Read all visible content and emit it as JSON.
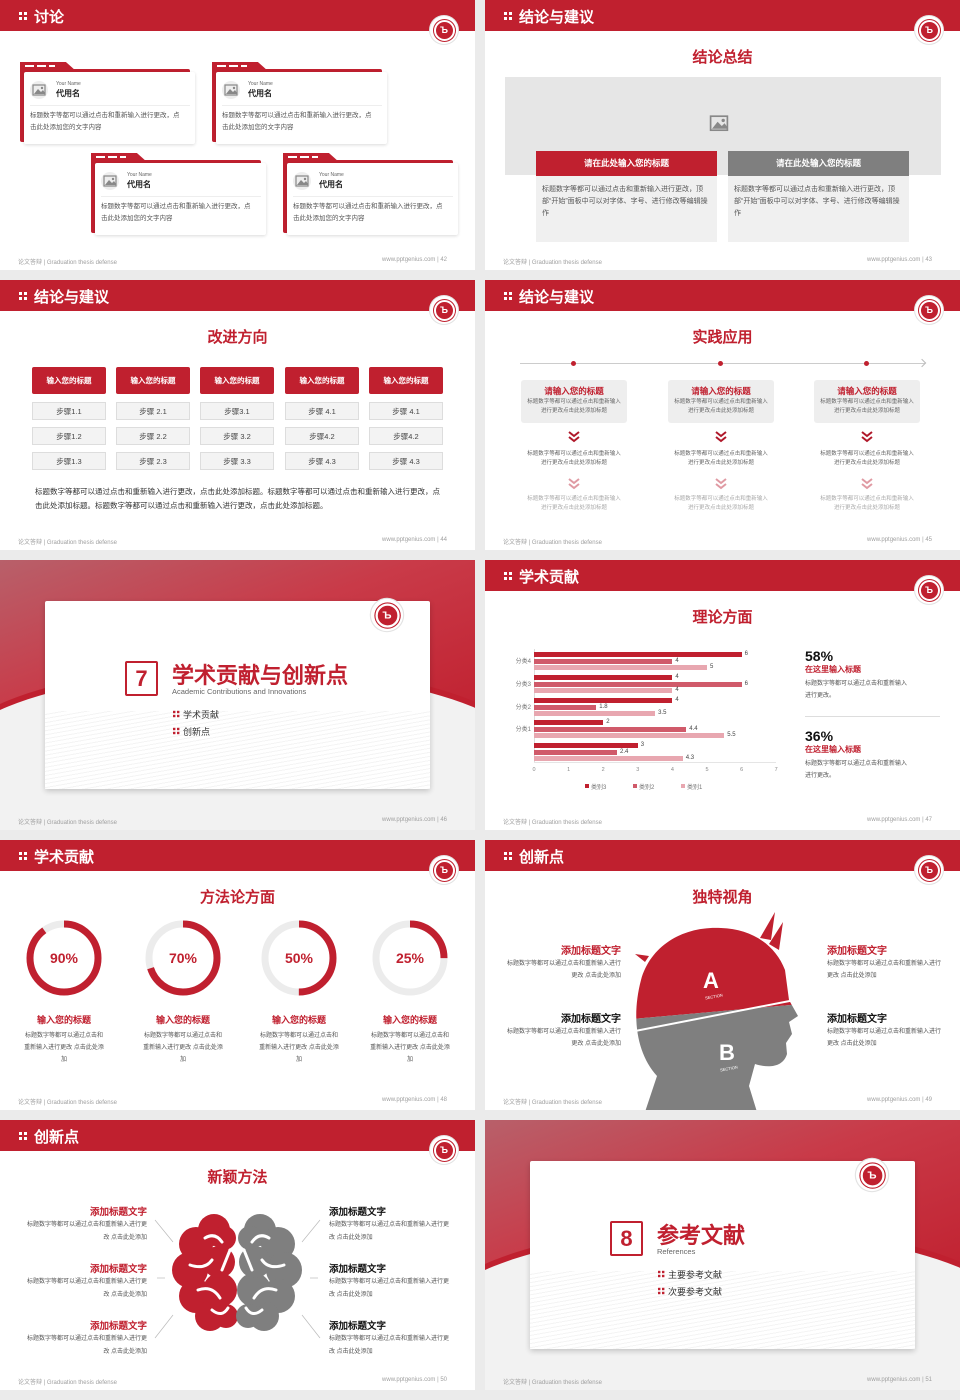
{
  "footer": {
    "left": "论文答辩 | Graduation thesis defense",
    "url": "www.pptgenius.com"
  },
  "colors": {
    "accent": "#c0202f",
    "gray": "#7f7f7f",
    "light_gray": "#f0f0f0"
  },
  "slides": [
    {
      "page": "42",
      "title": "讨论",
      "cards": [
        {
          "en": "Your Name",
          "name": "代用名",
          "text": "标题数字等都可以通过点击和重新输入进行更改，点击此处添加您的文字内容"
        },
        {
          "en": "Your Name",
          "name": "代用名",
          "text": "标题数字等都可以通过点击和重新输入进行更改，点击此处添加您的文字内容"
        },
        {
          "en": "Your Name",
          "name": "代用名",
          "text": "标题数字等都可以通过点击和重新输入进行更改，点击此处添加您的文字内容"
        },
        {
          "en": "Your Name",
          "name": "代用名",
          "text": "标题数字等都可以通过点击和重新输入进行更改，点击此处添加您的文字内容"
        }
      ]
    },
    {
      "page": "43",
      "title": "结论与建议",
      "subtitle": "结论总结",
      "boxes": [
        {
          "title": "请在此处输入您的标题",
          "text": "标题数字等都可以通过点击和重新输入进行更改，顶部“开始”面板中可以对字体、字号、进行修改等编辑操作"
        },
        {
          "title": "请在此处输入您的标题",
          "text": "标题数字等都可以通过点击和重新输入进行更改，顶部“开始”面板中可以对字体、字号、进行修改等编辑操作"
        }
      ]
    },
    {
      "page": "44",
      "title": "结论与建议",
      "subtitle": "改进方向",
      "columns": [
        {
          "head": "输入您的标题",
          "steps": [
            "步骤1.1",
            "步骤1.2",
            "步骤1.3"
          ]
        },
        {
          "head": "输入您的标题",
          "steps": [
            "步骤 2.1",
            "步骤 2.2",
            "步骤 2.3"
          ]
        },
        {
          "head": "输入您的标题",
          "steps": [
            "步骤3.1",
            "步骤 3.2",
            "步骤 3.3"
          ]
        },
        {
          "head": "输入您的标题",
          "steps": [
            "步骤 4.1",
            "步骤4.2",
            "步骤 4.3"
          ]
        },
        {
          "head": "输入您的标题",
          "steps": [
            "步骤 4.1",
            "步骤4.2",
            "步骤 4.3"
          ]
        }
      ],
      "text": "标题数字等都可以通过点击和重新输入进行更改，点击此处添加标题。标题数字等都可以通过点击和重新输入进行更改，点击此处添加标题。标题数字等都可以通过点击和重新输入进行更改，点击此处添加标题。"
    },
    {
      "page": "45",
      "title": "结论与建议",
      "subtitle": "实践应用",
      "items": [
        {
          "title": "请输入您的标题",
          "text": "标题数字等都可以通过点击和重新输入进行更改点击此处添加标题",
          "text2": "标题数字等都可以通过点击和重新输入进行更改点击此处添加标题",
          "text3": "标题数字等都可以通过点击和重新输入进行更改点击此处添加标题"
        },
        {
          "title": "请输入您的标题",
          "text": "标题数字等都可以通过点击和重新输入进行更改点击此处添加标题",
          "text2": "标题数字等都可以通过点击和重新输入进行更改点击此处添加标题",
          "text3": "标题数字等都可以通过点击和重新输入进行更改点击此处添加标题"
        },
        {
          "title": "请输入您的标题",
          "text": "标题数字等都可以通过点击和重新输入进行更改点击此处添加标题",
          "text2": "标题数字等都可以通过点击和重新输入进行更改点击此处添加标题",
          "text3": "标题数字等都可以通过点击和重新输入进行更改点击此处添加标题"
        }
      ]
    },
    {
      "page": "46",
      "section_no": "7",
      "title": "学术贡献与创新点",
      "en": "Academic Contributions and Innovations",
      "items": [
        "学术贡献",
        "创新点"
      ]
    },
    {
      "page": "47",
      "title": "学术贡献",
      "subtitle": "理论方面",
      "stats": [
        {
          "value": "58%",
          "title": "在这里输入标题",
          "text": "标题数字等都可以通过点击和重新输入进行更改。"
        },
        {
          "value": "36%",
          "title": "在这里输入标题",
          "text": "标题数字等都可以通过点击和重新输入进行更改。"
        }
      ]
    },
    {
      "page": "48",
      "title": "学术贡献",
      "subtitle": "方法论方面",
      "rings": [
        {
          "value": 90,
          "label": "90%",
          "title": "输入您的标题",
          "text": "标题数字等都可以通过点击和重新输入进行更改 点击此处添加"
        },
        {
          "value": 70,
          "label": "70%",
          "title": "输入您的标题",
          "text": "标题数字等都可以通过点击和重新输入进行更改 点击此处添加"
        },
        {
          "value": 50,
          "label": "50%",
          "title": "输入您的标题",
          "text": "标题数字等都可以通过点击和重新输入进行更改 点击此处添加"
        },
        {
          "value": 25,
          "label": "25%",
          "title": "输入您的标题",
          "text": "标题数字等都可以通过点击和重新输入进行更改 点击此处添加"
        }
      ]
    },
    {
      "page": "49",
      "title": "创新点",
      "subtitle": "独特视角",
      "head": {
        "a": "A",
        "b": "B",
        "section": "SECTION"
      },
      "items": [
        {
          "title": "添加标题文字",
          "text": "标题数字等都可以通过点击和重新输入进行更改 点击此处添加"
        },
        {
          "title": "添加标题文字",
          "text": "标题数字等都可以通过点击和重新输入进行更改 点击此处添加"
        },
        {
          "title": "添加标题文字",
          "text": "标题数字等都可以通过点击和重新输入进行更改 点击此处添加"
        },
        {
          "title": "添加标题文字",
          "text": "标题数字等都可以通过点击和重新输入进行更改 点击此处添加"
        }
      ]
    },
    {
      "page": "50",
      "title": "创新点",
      "subtitle": "新颖方法",
      "items": [
        {
          "title": "添加标题文字",
          "text": "标题数字等都可以通过点击和重新输入进行更改 点击此处添加"
        },
        {
          "title": "添加标题文字",
          "text": "标题数字等都可以通过点击和重新输入进行更改 点击此处添加"
        },
        {
          "title": "添加标题文字",
          "text": "标题数字等都可以通过点击和重新输入进行更改 点击此处添加"
        },
        {
          "title": "添加标题文字",
          "text": "标题数字等都可以通过点击和重新输入进行更改 点击此处添加"
        },
        {
          "title": "添加标题文字",
          "text": "标题数字等都可以通过点击和重新输入进行更改 点击此处添加"
        },
        {
          "title": "添加标题文字",
          "text": "标题数字等都可以通过点击和重新输入进行更改 点击此处添加"
        }
      ]
    },
    {
      "page": "51",
      "section_no": "8",
      "title": "参考文献",
      "en": "References",
      "items": [
        "主要参考文献",
        "次要参考文献"
      ]
    }
  ],
  "chart_data": {
    "type": "bar",
    "orientation": "horizontal",
    "categories": [
      "分类4",
      "分类3",
      "分类2",
      "分类1",
      ""
    ],
    "series": [
      {
        "name": "类别3",
        "values": [
          6,
          4,
          4,
          2,
          3
        ],
        "color": "#c0202f"
      },
      {
        "name": "类别2",
        "values": [
          4,
          6,
          1.8,
          4.4,
          2.4
        ],
        "color": "#d05a6a"
      },
      {
        "name": "类别1",
        "values": [
          5,
          4,
          3.5,
          5.5,
          4.3
        ],
        "color": "#e8a7b0"
      }
    ],
    "xlim": [
      0,
      7
    ],
    "xticks": [
      "0",
      "1",
      "2",
      "3",
      "4",
      "5",
      "6",
      "7"
    ],
    "legend": "bottom",
    "grid": false
  }
}
